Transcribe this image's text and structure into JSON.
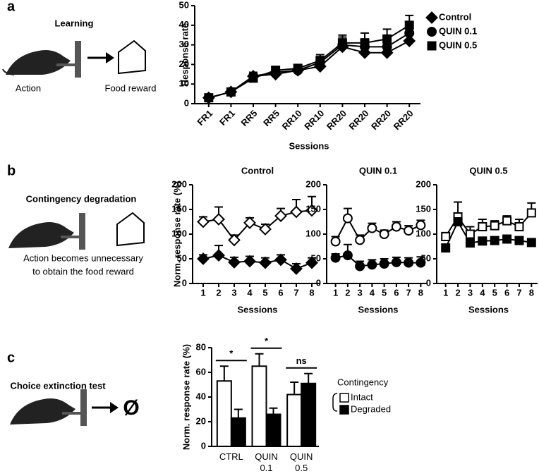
{
  "panel_labels": [
    "a",
    "b",
    "c"
  ],
  "diagrams": {
    "learning": {
      "title": "Learning",
      "action": "Action",
      "reward": "Food reward"
    },
    "degradation": {
      "title": "Contingency degradation",
      "caption": [
        "Action becomes unnecessary",
        "to obtain the food reward"
      ]
    },
    "extinction": {
      "title": "Choice extinction test",
      "outcome": "Ø"
    }
  },
  "chart_data": [
    {
      "type": "line",
      "ylabel": "Response rate",
      "xlabel": "Sessions",
      "categories": [
        "FR1",
        "FR1",
        "RR5",
        "RR5",
        "RR10",
        "RR10",
        "RR20",
        "RR20",
        "RR20",
        "RR20"
      ],
      "ylim": [
        0,
        50
      ],
      "yticks": [
        0,
        10,
        20,
        30,
        40,
        50
      ],
      "series": [
        {
          "name": "Control",
          "marker": "diamond",
          "color": "#000",
          "values": [
            3,
            6,
            14,
            15,
            17,
            19,
            29,
            26,
            26,
            32
          ],
          "errors": [
            1,
            1,
            2,
            2,
            2,
            2,
            4,
            4,
            4,
            4
          ]
        },
        {
          "name": "QUIN 0.1",
          "marker": "circle",
          "color": "#000",
          "values": [
            3,
            6,
            14,
            16,
            17,
            21,
            30,
            29,
            29,
            36
          ],
          "errors": [
            1,
            1,
            2,
            2,
            2,
            3,
            4,
            4,
            4,
            4
          ]
        },
        {
          "name": "QUIN 0.5",
          "marker": "square",
          "color": "#000",
          "values": [
            3,
            6,
            13,
            17,
            18,
            22,
            31,
            31,
            33,
            40
          ],
          "errors": [
            1,
            1,
            2,
            2,
            2,
            3,
            4,
            5,
            5,
            5
          ]
        }
      ]
    },
    {
      "type": "line",
      "title": "Control",
      "ylabel": "Norm. response rate (%)",
      "xlabel": "Sessions",
      "x": [
        1,
        2,
        3,
        4,
        5,
        6,
        7,
        8
      ],
      "xlim": [
        0.5,
        8.5
      ],
      "xticks": [
        1,
        2,
        3,
        4,
        5,
        6,
        7,
        8
      ],
      "ylim": [
        0,
        200
      ],
      "yticks": [
        0,
        50,
        100,
        150,
        200
      ],
      "series": [
        {
          "marker": "diamond",
          "color": "#fff",
          "values": [
            125,
            130,
            88,
            123,
            110,
            137,
            145,
            148
          ],
          "errors": [
            10,
            25,
            10,
            10,
            10,
            15,
            25,
            28
          ]
        },
        {
          "marker": "diamond",
          "color": "#000",
          "values": [
            50,
            57,
            43,
            45,
            42,
            48,
            30,
            42
          ],
          "errors": [
            8,
            20,
            10,
            10,
            10,
            10,
            10,
            10
          ]
        }
      ]
    },
    {
      "type": "line",
      "title": "QUIN 0.1",
      "xlabel": "Sessions",
      "x": [
        1,
        2,
        3,
        4,
        5,
        6,
        7,
        8
      ],
      "xlim": [
        0.5,
        8.5
      ],
      "xticks": [
        1,
        2,
        3,
        4,
        5,
        6,
        7,
        8
      ],
      "ylim": [
        0,
        200
      ],
      "yticks": [
        0,
        50,
        100,
        150,
        200
      ],
      "series": [
        {
          "marker": "circle",
          "color": "#fff",
          "values": [
            85,
            132,
            88,
            112,
            100,
            115,
            107,
            118
          ],
          "errors": [
            10,
            20,
            10,
            10,
            8,
            10,
            10,
            10
          ]
        },
        {
          "marker": "circle",
          "color": "#000",
          "values": [
            52,
            57,
            35,
            38,
            40,
            43,
            42,
            42
          ],
          "errors": [
            8,
            22,
            10,
            10,
            10,
            10,
            10,
            12
          ]
        }
      ]
    },
    {
      "type": "line",
      "title": "QUIN 0.5",
      "xlabel": "Sessions",
      "x": [
        1,
        2,
        3,
        4,
        5,
        6,
        7,
        8
      ],
      "xlim": [
        0.5,
        8.5
      ],
      "xticks": [
        1,
        2,
        3,
        4,
        5,
        6,
        7,
        8
      ],
      "ylim": [
        0,
        200
      ],
      "yticks": [
        0,
        50,
        100,
        150,
        200
      ],
      "series": [
        {
          "marker": "square",
          "color": "#fff",
          "values": [
            95,
            135,
            100,
            115,
            117,
            127,
            115,
            143
          ],
          "errors": [
            8,
            30,
            15,
            15,
            10,
            10,
            15,
            20
          ]
        },
        {
          "marker": "square",
          "color": "#000",
          "values": [
            72,
            125,
            82,
            86,
            87,
            90,
            87,
            83
          ],
          "errors": [
            5,
            15,
            8,
            5,
            5,
            5,
            5,
            5
          ]
        }
      ]
    },
    {
      "type": "bar",
      "ylabel": "Norm. response rate (%)",
      "legend_title": "Contingency",
      "categories": [
        [
          "CTRL"
        ],
        [
          "QUIN",
          "0.1"
        ],
        [
          "QUIN",
          "0.5"
        ]
      ],
      "ylim": [
        0,
        80
      ],
      "yticks": [
        0,
        20,
        40,
        60,
        80
      ],
      "annotations": [
        "*",
        "*",
        "ns"
      ],
      "series": [
        {
          "name": "Intact",
          "color": "#fff",
          "values": [
            53,
            65,
            42
          ],
          "errors": [
            12,
            10,
            10
          ]
        },
        {
          "name": "Degraded",
          "color": "#000",
          "values": [
            23,
            26,
            51
          ],
          "errors": [
            7,
            5,
            8
          ]
        }
      ]
    }
  ]
}
